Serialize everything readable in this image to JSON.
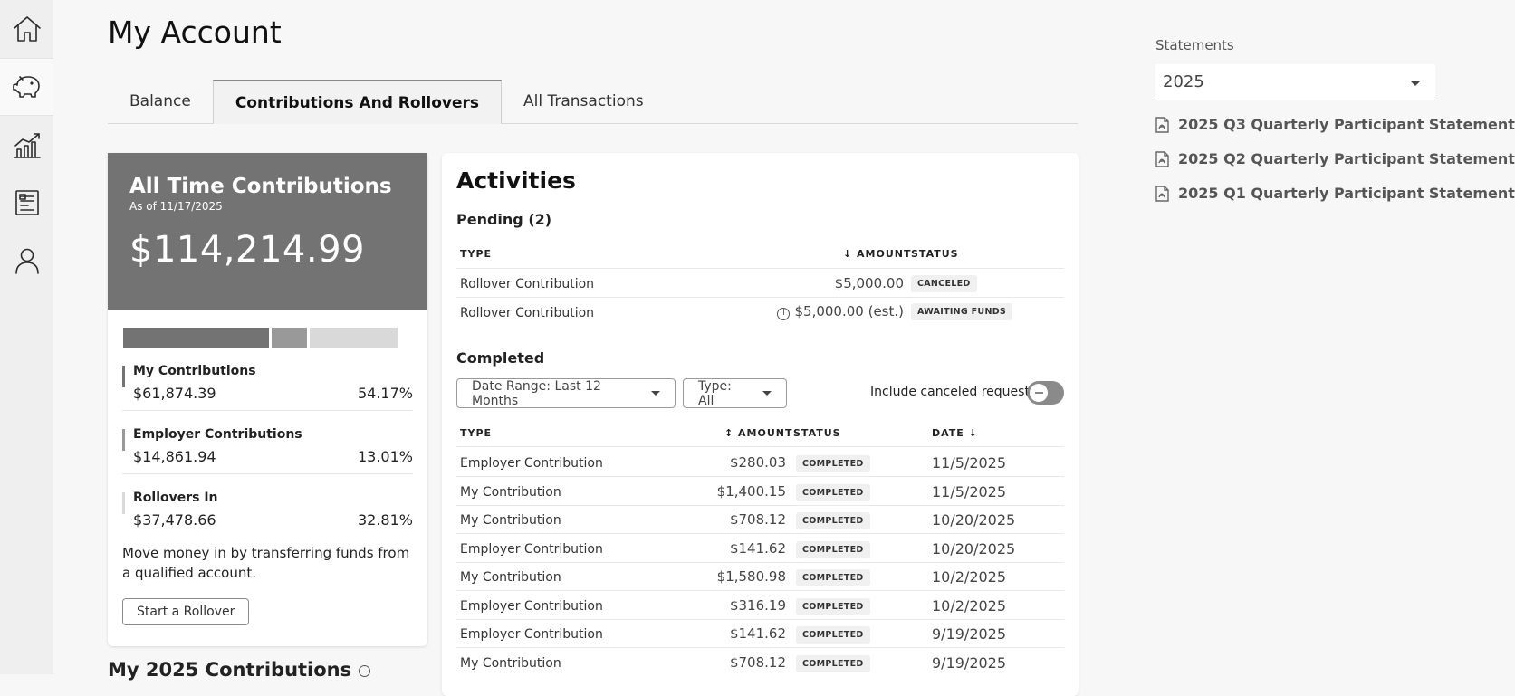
{
  "nav": {
    "items": [
      {
        "icon": "home-icon"
      },
      {
        "icon": "piggy-bank-icon",
        "active": true
      },
      {
        "icon": "chart-icon"
      },
      {
        "icon": "document-icon"
      },
      {
        "icon": "profile-icon"
      }
    ]
  },
  "header": {
    "title": "My Account",
    "tabs": [
      {
        "label": "Balance"
      },
      {
        "label": "Contributions And Rollovers",
        "active": true
      },
      {
        "label": "All Transactions"
      }
    ]
  },
  "summary": {
    "heading": "All Time Contributions",
    "as_of": "As of 11/17/2025",
    "total": "$114,214.99",
    "items": [
      {
        "label": "My Contributions",
        "amount": "$61,874.39",
        "percent": "54.17%",
        "color": "#737373"
      },
      {
        "label": "Employer Contributions",
        "amount": "$14,861.94",
        "percent": "13.01%",
        "color": "#999999"
      },
      {
        "label": "Rollovers In",
        "amount": "$37,478.66",
        "percent": "32.81%",
        "color": "#d9d9d9"
      }
    ],
    "share_values": [
      54.17,
      13.01,
      32.81
    ],
    "move_text": "Move money in by transferring funds from a qualified account.",
    "rollover_button": "Start a Rollover"
  },
  "next_section": {
    "title": "My 2025 Contributions"
  },
  "activities": {
    "title": "Activities",
    "pending": {
      "title": "Pending (2)",
      "headers": {
        "type": "TYPE",
        "amount": "AMOUNT",
        "status": "STATUS"
      },
      "rows": [
        {
          "type": "Rollover Contribution",
          "amount": "$5,000.00",
          "status": "CANCELED",
          "info": false
        },
        {
          "type": "Rollover Contribution",
          "amount": "$5,000.00 (est.)",
          "status": "AWAITING FUNDS",
          "info": true
        }
      ]
    },
    "completed": {
      "title": "Completed",
      "filters": {
        "date_range": "Date Range: Last 12 Months",
        "type": "Type: All"
      },
      "toggle_label": "Include canceled requests",
      "toggle_on": false,
      "headers": {
        "type": "TYPE",
        "amount": "AMOUNT",
        "status": "STATUS",
        "date": "DATE"
      },
      "rows": [
        {
          "type": "Employer Contribution",
          "amount": "$280.03",
          "status": "COMPLETED",
          "date": "11/5/2025"
        },
        {
          "type": "My Contribution",
          "amount": "$1,400.15",
          "status": "COMPLETED",
          "date": "11/5/2025"
        },
        {
          "type": "My Contribution",
          "amount": "$708.12",
          "status": "COMPLETED",
          "date": "10/20/2025"
        },
        {
          "type": "Employer Contribution",
          "amount": "$141.62",
          "status": "COMPLETED",
          "date": "10/20/2025"
        },
        {
          "type": "My Contribution",
          "amount": "$1,580.98",
          "status": "COMPLETED",
          "date": "10/2/2025"
        },
        {
          "type": "Employer Contribution",
          "amount": "$316.19",
          "status": "COMPLETED",
          "date": "10/2/2025"
        },
        {
          "type": "Employer Contribution",
          "amount": "$141.62",
          "status": "COMPLETED",
          "date": "9/19/2025"
        },
        {
          "type": "My Contribution",
          "amount": "$708.12",
          "status": "COMPLETED",
          "date": "9/19/2025"
        }
      ]
    }
  },
  "statements": {
    "label": "Statements",
    "selected_year": "2025",
    "items": [
      {
        "label": "2025 Q3 Quarterly Participant Statement"
      },
      {
        "label": "2025 Q2 Quarterly Participant Statement"
      },
      {
        "label": "2025 Q1 Quarterly Participant Statement"
      }
    ]
  }
}
